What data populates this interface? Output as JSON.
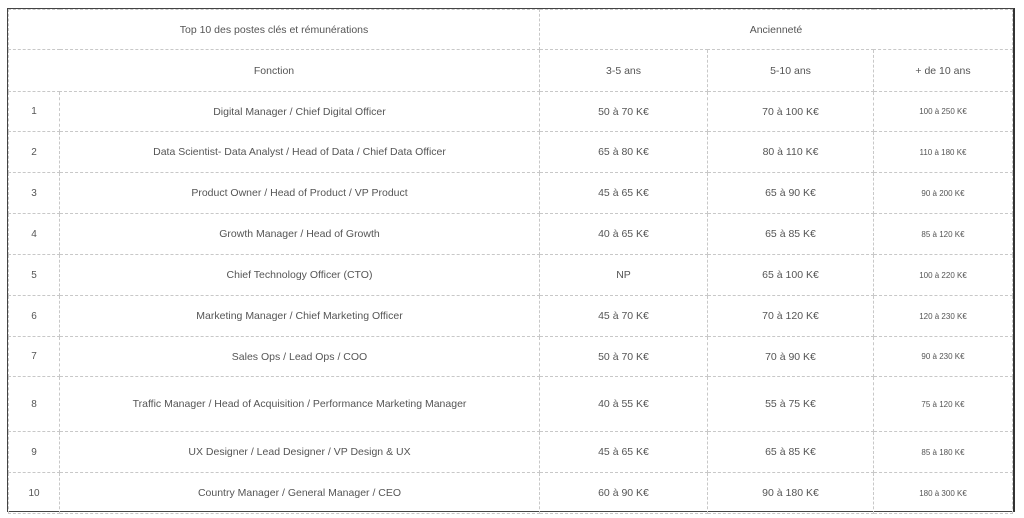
{
  "table": {
    "title": "Top 10 des postes clés et rémunérations",
    "seniority_header": "Ancienneté",
    "function_header": "Fonction",
    "columns": [
      "3-5 ans",
      "5-10 ans",
      "+ de 10 ans"
    ],
    "rows": [
      {
        "rank": "1",
        "function": "Digital Manager / Chief Digital Officer",
        "y3_5": "50 à 70 K€",
        "y5_10": "70 à 100 K€",
        "y10plus": "100 à 250 K€"
      },
      {
        "rank": "2",
        "function": "Data Scientist- Data Analyst / Head of Data / Chief Data Officer",
        "y3_5": "65 à 80 K€",
        "y5_10": "80 à 110 K€",
        "y10plus": "110 à 180 K€"
      },
      {
        "rank": "3",
        "function": "Product Owner / Head of Product /  VP Product",
        "y3_5": "45 à 65 K€",
        "y5_10": "65 à 90 K€",
        "y10plus": "90 à 200 K€"
      },
      {
        "rank": "4",
        "function": "Growth Manager / Head of Growth",
        "y3_5": "40 à 65 K€",
        "y5_10": "65 à 85 K€",
        "y10plus": "85 à 120 K€"
      },
      {
        "rank": "5",
        "function": "Chief Technology Officer (CTO)",
        "y3_5": "NP",
        "y5_10": "65 à 100 K€",
        "y10plus": "100 à 220 K€"
      },
      {
        "rank": "6",
        "function": "Marketing Manager / Chief Marketing Officer",
        "y3_5": "45 à 70 K€",
        "y5_10": "70 à 120 K€",
        "y10plus": "120 à 230 K€"
      },
      {
        "rank": "7",
        "function": "Sales Ops / Lead Ops / COO",
        "y3_5": "50 à 70 K€",
        "y5_10": "70 à 90 K€",
        "y10plus": "90 à 230 K€"
      },
      {
        "rank": "8",
        "function": "Traffic Manager / Head of Acquisition / Performance Marketing Manager",
        "y3_5": "40 à 55 K€",
        "y5_10": "55 à 75 K€",
        "y10plus": "75 à 120 K€"
      },
      {
        "rank": "9",
        "function": "UX Designer / Lead Designer / VP Design & UX",
        "y3_5": "45 à 65 K€",
        "y5_10": "65 à 85 K€",
        "y10plus": "85 à 180 K€"
      },
      {
        "rank": "10",
        "function": "Country Manager / General Manager / CEO",
        "y3_5": "60 à 90 K€",
        "y5_10": "90 à 180 K€",
        "y10plus": "180 à 300 K€"
      }
    ]
  }
}
